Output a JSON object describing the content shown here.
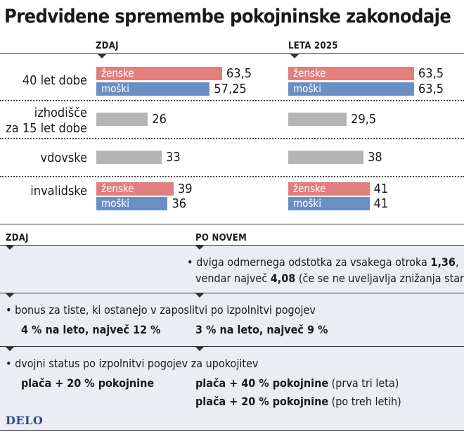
{
  "title": "Predvidene spremembe pokojninske zakonodaje",
  "colors": {
    "zenske": "#e07f7e",
    "moski": "#6a8fc2",
    "neutral": "#b5b5b5"
  },
  "chart_data": {
    "type": "bar",
    "title": "Predvidene spremembe pokojninske zakonodaje",
    "panels": [
      "ZDAJ",
      "LETA 2025"
    ],
    "groups": [
      {
        "label": "40 let dobe",
        "bars": [
          {
            "name": "ženske",
            "values": [
              63.5,
              63.5
            ],
            "display": [
              "63,5",
              "63,5"
            ]
          },
          {
            "name": "moški",
            "values": [
              57.25,
              63.5
            ],
            "display": [
              "57,25",
              "63,5"
            ]
          }
        ]
      },
      {
        "label_lines": [
          "izhodišče",
          "za 15 let dobe"
        ],
        "bars": [
          {
            "name": "",
            "values": [
              26,
              29.5
            ],
            "display": [
              "26",
              "29,5"
            ]
          }
        ]
      },
      {
        "label": "vdovske",
        "bars": [
          {
            "name": "",
            "values": [
              33,
              38
            ],
            "display": [
              "33",
              "38"
            ]
          }
        ]
      },
      {
        "label": "invalidske",
        "bars": [
          {
            "name": "ženske",
            "values": [
              39,
              41
            ],
            "display": [
              "39",
              "41"
            ]
          },
          {
            "name": "moški",
            "values": [
              36,
              41
            ],
            "display": [
              "36",
              "41"
            ]
          }
        ]
      }
    ],
    "xlim": [
      0,
      63.5
    ],
    "grid": false,
    "legend": "none"
  },
  "lower": {
    "col_zdaj": "ZDAJ",
    "col_po_novem": "PO NOVEM",
    "row1": {
      "bullet": "•",
      "line1": "dviga odmernega odstotka za vsakega otroka ",
      "line1_bold": "1,36",
      "line1_end": ",",
      "line2": "vendar največ ",
      "line2_bold": "4,08",
      "line2_end": " (če se ne uveljavlja znižanja starosti)"
    },
    "row2": {
      "bullet": "•",
      "desc": "bonus za tiste, ki ostanejo v zaposlitvi po izpolnitvi pogojev",
      "zdaj": "4 % na leto, največ 12 %",
      "novo": "3 % na leto, največ 9 %"
    },
    "row3": {
      "bullet": "•",
      "desc": "dvojni status po izpolnitvi pogojev za upokojitev",
      "zdaj": "plača + 20 % pokojnine",
      "novo1_bold": "plača + 40 % pokojnine",
      "novo1_rest": " (prva tri leta)",
      "novo2_bold": "plača + 20 % pokojnine",
      "novo2_rest": " (po treh letih)"
    }
  },
  "logo": "DELO"
}
